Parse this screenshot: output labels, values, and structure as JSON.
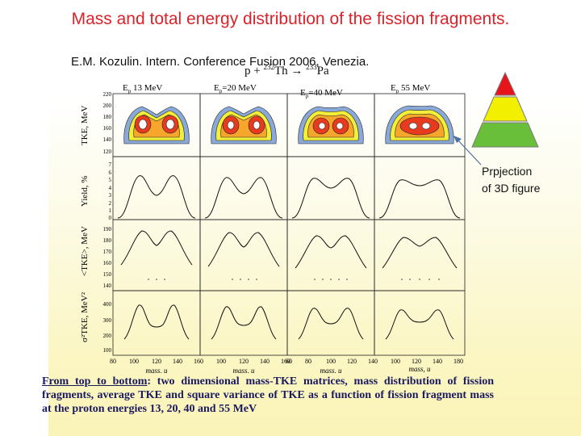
{
  "title": "Mass and total energy distribution of the fission fragments.",
  "citation": "E.M. Kozulin.  Intern. Conference Fusion 2006, Venezia.",
  "reaction": {
    "p": "p",
    "arrow": "+",
    "target_mass": "232",
    "target": "Th",
    "to": "→",
    "product_mass": "233",
    "product": "Pa"
  },
  "columns": [
    {
      "label": "E",
      "sub": "p",
      "value": " 13 MeV"
    },
    {
      "label": "E",
      "sub": "p",
      "value": "=20 MeV"
    },
    {
      "label": "E",
      "sub": "p",
      "value": "=40 MeV"
    },
    {
      "label": "E",
      "sub": "p",
      "value": " 55 MeV"
    }
  ],
  "row_labels": [
    "TKE, MeV",
    "Yield, %",
    "<TKE>, MeV",
    "σ²TKE, MeV²"
  ],
  "row_ticks": [
    [
      "220",
      "200",
      "180",
      "160",
      "140",
      "120"
    ],
    [
      "7",
      "6",
      "5",
      "4",
      "3",
      "2",
      "1",
      "0"
    ],
    [
      "190",
      "180",
      "170",
      "160",
      "150",
      "140"
    ],
    [
      "400",
      "300",
      "200",
      "100"
    ]
  ],
  "x_ticks": [
    "80",
    "100",
    "120",
    "140",
    "160"
  ],
  "x_ticks_alt": [
    "60",
    "80",
    "100",
    "120",
    "140",
    "160",
    "180"
  ],
  "x_label": "mass, u",
  "annotation": {
    "line1": "Prpjection",
    "line2": "of 3D figure"
  },
  "caption": {
    "lead": "From top to bottom",
    "text": ": two dimensional mass-TKE matrices, mass distribution of fission fragments, average TKE and square variance of TKE as a function of fission fragment mass at the proton energies 13, 20, 40 and 55 MeV"
  },
  "colors": {
    "title": "#d9232a",
    "pyramid_top": "#e8141c",
    "pyramid_mid": "#f2ef00",
    "pyramid_base": "#6abf3a"
  }
}
